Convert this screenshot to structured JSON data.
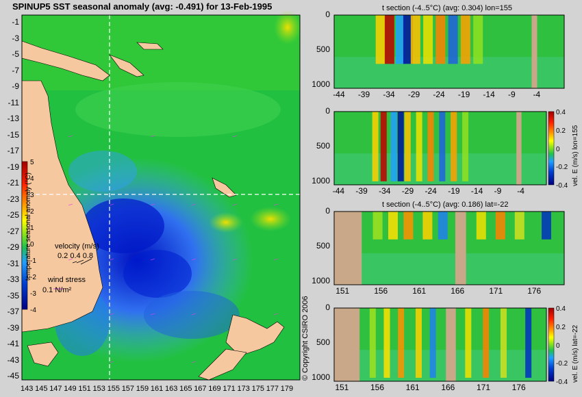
{
  "map": {
    "title": "SPINUP5 SST seasonal anomaly (avg: -0.491) for 13-Feb-1995",
    "lat_ticks": [
      "-1",
      "-3",
      "-5",
      "-7",
      "-9",
      "-11",
      "-13",
      "-15",
      "-17",
      "-19",
      "-21",
      "-23",
      "-25",
      "-27",
      "-29",
      "-31",
      "-33",
      "-35",
      "-37",
      "-39",
      "-41",
      "-43",
      "-45"
    ],
    "lon_ticks": [
      "143",
      "145",
      "147",
      "149",
      "151",
      "153",
      "155",
      "157",
      "159",
      "161",
      "163",
      "165",
      "167",
      "169",
      "171",
      "173",
      "175",
      "177",
      "179"
    ],
    "colorbar_label": "temperature seasonal anomaly (°C)",
    "colorbar_ticks": [
      "5",
      "4",
      "3",
      "2",
      "1",
      "0",
      "-1",
      "-2",
      "-3",
      "-4"
    ],
    "velocity_label": "velocity (m/s)",
    "velocity_values": "0.2 0.4 0.8",
    "wind_label": "wind stress",
    "wind_value": "0.1 N/m²",
    "copyright": "© Copyright CSIRO 2006",
    "colors": {
      "land": "#f5c8a0",
      "background": "#d3d3d3"
    }
  },
  "chart_data": [
    {
      "type": "heatmap",
      "title": "t section (-4..5°C) (avg: 0.304) lon=155",
      "xlabel": "",
      "ylabel": "",
      "x_ticks": [
        "-44",
        "-39",
        "-34",
        "-29",
        "-24",
        "-19",
        "-14",
        "-9",
        "-4"
      ],
      "y_ticks": [
        "0",
        "500",
        "1000"
      ],
      "xlim": [
        -45,
        1
      ],
      "ylim": [
        1050,
        0
      ],
      "anomalies": [
        {
          "x": -34,
          "depth": 500,
          "sign": "warm"
        },
        {
          "x": -30.5,
          "depth": 450,
          "sign": "cold"
        },
        {
          "x": -26,
          "depth": 250,
          "sign": "warm"
        },
        {
          "x": -24,
          "depth": 400,
          "sign": "warm"
        },
        {
          "x": -21,
          "depth": 450,
          "sign": "cold"
        },
        {
          "x": -19,
          "depth": 300,
          "sign": "warm"
        }
      ]
    },
    {
      "type": "heatmap",
      "title": "",
      "ylabel": "vel. E (m/s) lon=155",
      "x_ticks": [
        "-44",
        "-39",
        "-34",
        "-29",
        "-24",
        "-19",
        "-14",
        "-9",
        "-4"
      ],
      "y_ticks": [
        "0",
        "500",
        "1000"
      ],
      "colorbar_ticks": [
        "0.4",
        "0.2",
        "0",
        "-0.2",
        "-0.4"
      ],
      "xlim": [
        -45,
        1
      ],
      "ylim": [
        1050,
        0
      ]
    },
    {
      "type": "heatmap",
      "title": "t section (-4..5°C) (avg: 0.186) lat=-22",
      "x_ticks": [
        "151",
        "156",
        "161",
        "166",
        "171",
        "176"
      ],
      "y_ticks": [
        "0",
        "500",
        "1000"
      ],
      "xlim": [
        150,
        180
      ],
      "ylim": [
        1050,
        0
      ]
    },
    {
      "type": "heatmap",
      "title": "",
      "ylabel": "vel. E (m/s) lat=-22",
      "x_ticks": [
        "151",
        "156",
        "161",
        "166",
        "171",
        "176"
      ],
      "y_ticks": [
        "0",
        "500",
        "1000"
      ],
      "colorbar_ticks": [
        "0.4",
        "0.2",
        "0",
        "-0.2",
        "-0.4"
      ],
      "xlim": [
        150,
        180
      ],
      "ylim": [
        1050,
        0
      ]
    }
  ]
}
